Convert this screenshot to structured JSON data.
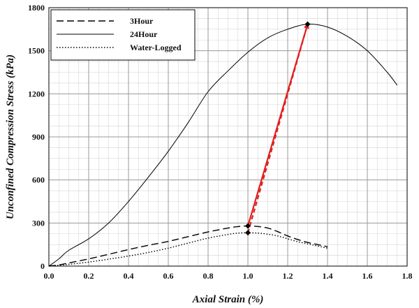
{
  "chart_data": {
    "type": "line",
    "xlabel": "Axial Strain (%)",
    "ylabel": "Unconfined Compression Stress (kPa)",
    "xlim": [
      0,
      1.8
    ],
    "ylim": [
      0,
      1800
    ],
    "xticks": [
      "0.0",
      "0.2",
      "0.4",
      "0.6",
      "0.8",
      "1.0",
      "1.2",
      "1.4",
      "1.6",
      "1.8"
    ],
    "yticks": [
      "0",
      "300",
      "600",
      "900",
      "1200",
      "1500",
      "1800"
    ],
    "grid": true,
    "legend_position": "top-left",
    "series": [
      {
        "name": "3Hour",
        "style": "dashed",
        "color": "#000000",
        "x": [
          0,
          0.05,
          0.1,
          0.2,
          0.3,
          0.4,
          0.5,
          0.6,
          0.7,
          0.8,
          0.9,
          0.95,
          1.0,
          1.05,
          1.1,
          1.15,
          1.2,
          1.25,
          1.3,
          1.35,
          1.4
        ],
        "y": [
          0,
          8,
          22,
          50,
          82,
          115,
          145,
          172,
          205,
          238,
          265,
          275,
          280,
          276,
          265,
          240,
          210,
          185,
          165,
          150,
          135
        ]
      },
      {
        "name": "24Hour",
        "style": "solid",
        "color": "#000000",
        "x": [
          0,
          0.05,
          0.1,
          0.2,
          0.3,
          0.4,
          0.5,
          0.6,
          0.7,
          0.8,
          0.9,
          1.0,
          1.1,
          1.2,
          1.3,
          1.4,
          1.5,
          1.6,
          1.7,
          1.75
        ],
        "y": [
          0,
          50,
          110,
          190,
          300,
          450,
          620,
          800,
          1000,
          1215,
          1360,
          1490,
          1590,
          1650,
          1685,
          1665,
          1600,
          1500,
          1350,
          1260
        ]
      },
      {
        "name": "Water-Logged",
        "style": "dotted",
        "color": "#000000",
        "x": [
          0,
          0.1,
          0.2,
          0.3,
          0.4,
          0.5,
          0.6,
          0.7,
          0.8,
          0.9,
          0.95,
          1.0,
          1.05,
          1.1,
          1.15,
          1.2,
          1.25,
          1.3,
          1.35,
          1.4
        ],
        "y": [
          0,
          12,
          28,
          48,
          70,
          95,
          125,
          160,
          195,
          220,
          230,
          232,
          230,
          222,
          210,
          190,
          170,
          155,
          140,
          125
        ]
      }
    ],
    "markers": [
      {
        "x": 1.0,
        "y": 280
      },
      {
        "x": 1.0,
        "y": 232
      },
      {
        "x": 1.3,
        "y": 1685
      }
    ],
    "arrows": [
      {
        "from": [
          1.0,
          280
        ],
        "to": [
          1.3,
          1685
        ],
        "style": "solid",
        "color": "#e02020"
      },
      {
        "from": [
          1.0,
          232
        ],
        "to": [
          1.3,
          1685
        ],
        "style": "dashed",
        "color": "#e02020"
      }
    ]
  }
}
